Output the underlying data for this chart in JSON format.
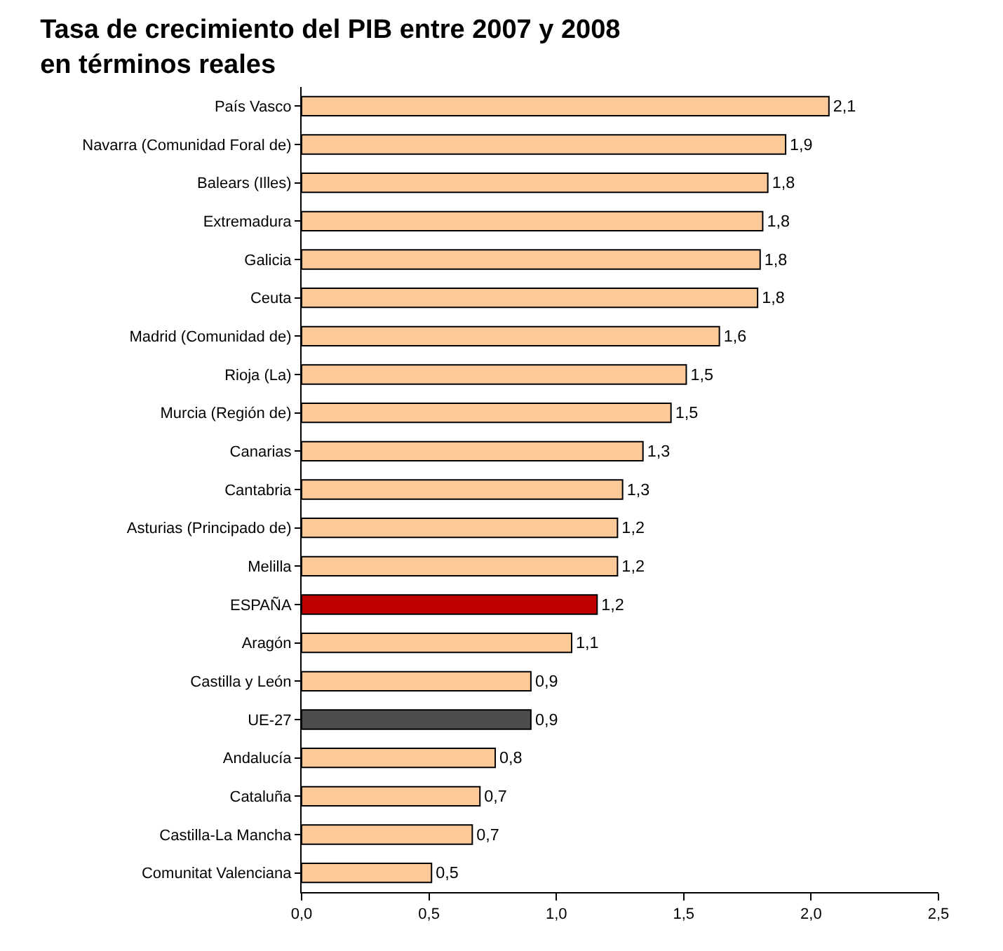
{
  "chart_data": {
    "type": "bar",
    "orientation": "horizontal",
    "title": "Tasa de crecimiento del PIB entre 2007 y 2008\nen términos reales",
    "categories": [
      "País Vasco",
      "Navarra (Comunidad Foral de)",
      "Balears (Illes)",
      "Extremadura",
      "Galicia",
      "Ceuta",
      "Madrid (Comunidad de)",
      "Rioja (La)",
      "Murcia (Región de)",
      "Canarias",
      "Cantabria",
      "Asturias (Principado de)",
      "Melilla",
      "ESPAÑA",
      "Aragón",
      "Castilla y León",
      "UE-27",
      "Andalucía",
      "Cataluña",
      "Castilla-La Mancha",
      "Comunitat Valenciana"
    ],
    "values": [
      2.07,
      1.9,
      1.83,
      1.81,
      1.8,
      1.79,
      1.64,
      1.51,
      1.45,
      1.34,
      1.26,
      1.24,
      1.24,
      1.16,
      1.06,
      0.9,
      0.9,
      0.76,
      0.7,
      0.67,
      0.51
    ],
    "value_labels": [
      "2,1",
      "1,9",
      "1,8",
      "1,8",
      "1,8",
      "1,8",
      "1,6",
      "1,5",
      "1,5",
      "1,3",
      "1,3",
      "1,2",
      "1,2",
      "1,2",
      "1,1",
      "0,9",
      "0,9",
      "0,8",
      "0,7",
      "0,7",
      "0,5"
    ],
    "colors": [
      "#fcc998",
      "#fcc998",
      "#fcc998",
      "#fcc998",
      "#fcc998",
      "#fcc998",
      "#fcc998",
      "#fcc998",
      "#fcc998",
      "#fcc998",
      "#fcc998",
      "#fcc998",
      "#fcc998",
      "#c00000",
      "#fcc998",
      "#fcc998",
      "#4d4d4d",
      "#fcc998",
      "#fcc998",
      "#fcc998",
      "#fcc998"
    ],
    "xlim": [
      0,
      2.5
    ],
    "xticks": [
      {
        "value": 0,
        "label": "0,0"
      },
      {
        "value": 0.5,
        "label": "0,5"
      },
      {
        "value": 1,
        "label": "1,0"
      },
      {
        "value": 1.5,
        "label": "1,5"
      },
      {
        "value": 2,
        "label": "2,0"
      },
      {
        "value": 2.5,
        "label": "2,5"
      }
    ]
  }
}
